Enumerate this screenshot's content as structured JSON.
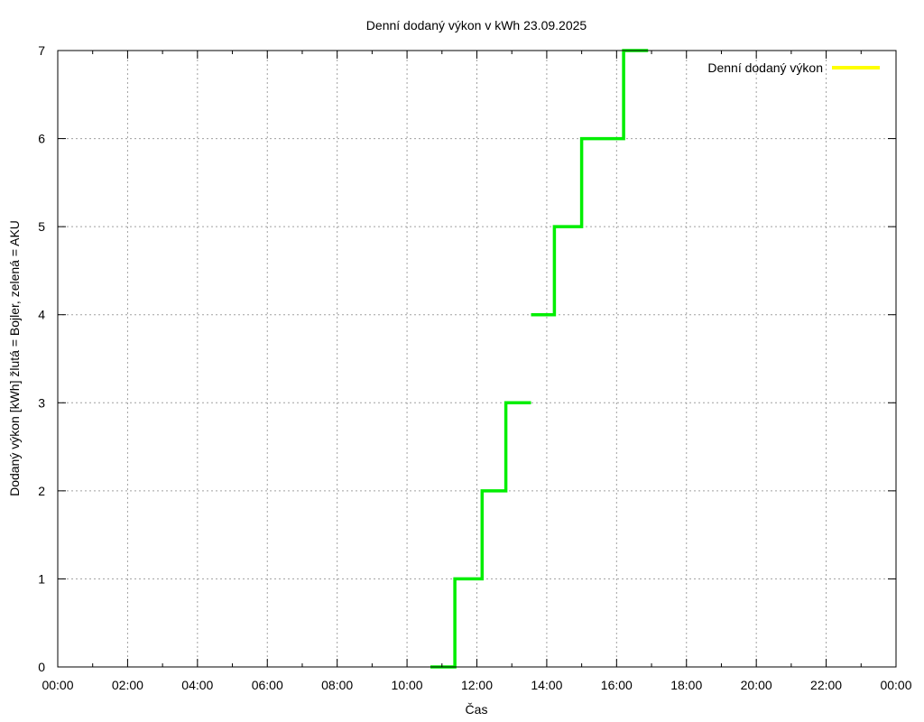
{
  "chart_data": {
    "type": "line",
    "title": "Denní dodaný výkon v kWh 23.09.2025",
    "xlabel": "Čas",
    "ylabel": "Dodaný výkon [kWh]  žlutá = Bojler, zelená = AKU",
    "xlim": [
      0,
      24
    ],
    "ylim": [
      0,
      7
    ],
    "x_ticks": [
      {
        "value": 0,
        "label": "00:00"
      },
      {
        "value": 2,
        "label": "02:00"
      },
      {
        "value": 4,
        "label": "04:00"
      },
      {
        "value": 6,
        "label": "06:00"
      },
      {
        "value": 8,
        "label": "08:00"
      },
      {
        "value": 10,
        "label": "10:00"
      },
      {
        "value": 12,
        "label": "12:00"
      },
      {
        "value": 14,
        "label": "14:00"
      },
      {
        "value": 16,
        "label": "16:00"
      },
      {
        "value": 18,
        "label": "18:00"
      },
      {
        "value": 20,
        "label": "20:00"
      },
      {
        "value": 22,
        "label": "22:00"
      },
      {
        "value": 24,
        "label": "00:00"
      }
    ],
    "y_ticks": [
      {
        "value": 0,
        "label": "0"
      },
      {
        "value": 1,
        "label": "1"
      },
      {
        "value": 2,
        "label": "2"
      },
      {
        "value": 3,
        "label": "3"
      },
      {
        "value": 4,
        "label": "4"
      },
      {
        "value": 5,
        "label": "5"
      },
      {
        "value": 6,
        "label": "6"
      },
      {
        "value": 7,
        "label": "7"
      }
    ],
    "grid": true,
    "legend_position": "top-right",
    "legend": [
      {
        "label": "Denní dodaný výkon",
        "color": "#ffff00"
      }
    ],
    "series": [
      {
        "color": "#00ee00",
        "points": [
          {
            "x": 10.67,
            "y": 0
          },
          {
            "x": 11.37,
            "y": 0
          },
          {
            "x": 11.37,
            "y": 1
          },
          {
            "x": 12.15,
            "y": 1
          },
          {
            "x": 12.15,
            "y": 2
          },
          {
            "x": 12.83,
            "y": 2
          },
          {
            "x": 12.83,
            "y": 3
          },
          {
            "x": 13.55,
            "y": 3
          }
        ]
      },
      {
        "color": "#00ee00",
        "points": [
          {
            "x": 13.55,
            "y": 4
          },
          {
            "x": 14.22,
            "y": 4
          },
          {
            "x": 14.22,
            "y": 5
          },
          {
            "x": 15.0,
            "y": 5
          },
          {
            "x": 15.0,
            "y": 6
          },
          {
            "x": 16.2,
            "y": 6
          },
          {
            "x": 16.2,
            "y": 7
          },
          {
            "x": 16.9,
            "y": 7
          }
        ]
      }
    ],
    "colors": {
      "aku": "#00ee00",
      "bojler": "#ffff00",
      "grid": "#a0a0a0",
      "axis": "#000000"
    }
  }
}
